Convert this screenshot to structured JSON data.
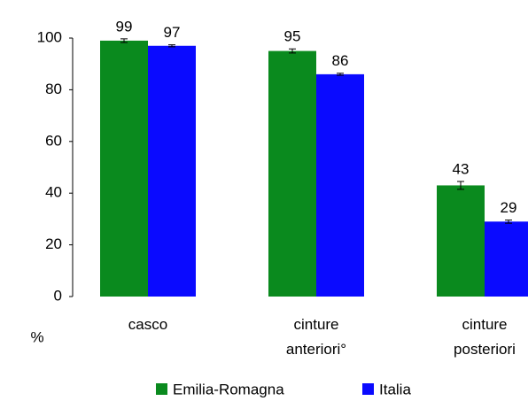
{
  "chart_data": {
    "type": "bar",
    "y_label": "%",
    "categories": [
      "casco",
      "cinture anteriori°",
      "cinture posteriori"
    ],
    "series": [
      {
        "name": "Emilia-Romagna",
        "color": "#0a8a1e",
        "values": [
          99,
          95,
          43
        ],
        "errors": [
          0.7,
          0.8,
          1.5
        ]
      },
      {
        "name": "Italia",
        "color": "#0a0aff",
        "values": [
          97,
          86,
          29
        ],
        "errors": [
          0.4,
          0.4,
          0.6
        ]
      }
    ],
    "ylim": [
      0,
      100
    ],
    "yticks": [
      0,
      20,
      40,
      60,
      80,
      100
    ],
    "grid": false,
    "legend": "bottom"
  }
}
